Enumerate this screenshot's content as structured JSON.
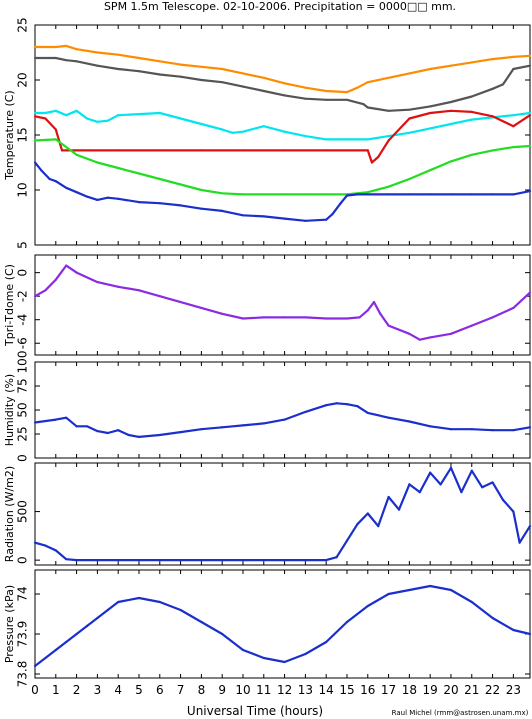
{
  "title": "SPM 1.5m Telescope. 02-10-2006. Precipitation = 0000□□ mm.",
  "xlabel": "Universal Time (hours)",
  "credit": "Raul Michel (rmm@astrosen.unam.mx)",
  "x_ticks": [
    0,
    1,
    2,
    3,
    4,
    5,
    6,
    7,
    8,
    9,
    10,
    11,
    12,
    13,
    14,
    15,
    16,
    17,
    18,
    19,
    20,
    21,
    22,
    23
  ],
  "chart_data": [
    {
      "type": "scatter",
      "ylabel": "Temperature (C)",
      "ylim": [
        5,
        25
      ],
      "yticks": [
        5,
        10,
        15,
        20,
        25
      ],
      "xlim": [
        0,
        23.8
      ],
      "series": [
        {
          "color": "#ff8c00",
          "x": [
            0,
            1,
            1.5,
            2,
            3,
            4,
            5,
            6,
            7,
            8,
            9,
            10,
            11,
            12,
            13,
            14,
            15,
            15.5,
            16,
            17,
            18,
            19,
            20,
            21,
            22,
            23,
            23.8
          ],
          "y": [
            23,
            23,
            23.1,
            22.8,
            22.5,
            22.3,
            22,
            21.7,
            21.4,
            21.2,
            21,
            20.6,
            20.2,
            19.7,
            19.3,
            19,
            18.9,
            19.3,
            19.8,
            20.2,
            20.6,
            21,
            21.3,
            21.6,
            21.9,
            22.1,
            22.2
          ]
        },
        {
          "color": "#555555",
          "x": [
            0,
            1,
            1.5,
            2,
            3,
            4,
            5,
            6,
            7,
            8,
            9,
            10,
            11,
            12,
            13,
            14,
            15,
            15.8,
            16,
            17,
            18,
            19,
            20,
            21,
            22,
            22.5,
            23,
            23.8
          ],
          "y": [
            22,
            22,
            21.8,
            21.7,
            21.3,
            21,
            20.8,
            20.5,
            20.3,
            20,
            19.8,
            19.4,
            19,
            18.6,
            18.3,
            18.2,
            18.2,
            17.8,
            17.5,
            17.2,
            17.3,
            17.6,
            18,
            18.5,
            19.2,
            19.6,
            21,
            21.3
          ]
        },
        {
          "color": "#00e5ee",
          "x": [
            0,
            0.5,
            1,
            1.5,
            2,
            2.5,
            3,
            3.5,
            4,
            5,
            6,
            7,
            8,
            9,
            9.5,
            10,
            11,
            12,
            13,
            14,
            15,
            16,
            17,
            18,
            19,
            20,
            21,
            22,
            23,
            23.8
          ],
          "y": [
            17,
            17,
            17.2,
            16.8,
            17.2,
            16.5,
            16.2,
            16.3,
            16.8,
            16.9,
            17,
            16.5,
            16,
            15.5,
            15.2,
            15.3,
            15.8,
            15.3,
            14.9,
            14.6,
            14.6,
            14.6,
            14.9,
            15.2,
            15.6,
            16,
            16.4,
            16.6,
            16.8,
            17
          ]
        },
        {
          "color": "#dd1111",
          "x": [
            0,
            0.5,
            1,
            1.3,
            2,
            4,
            6,
            8,
            10,
            12,
            14,
            16,
            16.2,
            16.5,
            17,
            18,
            19,
            20,
            21,
            22,
            23,
            23.8
          ],
          "y": [
            16.7,
            16.5,
            15.5,
            13.6,
            13.6,
            13.6,
            13.6,
            13.6,
            13.6,
            13.6,
            13.6,
            13.6,
            12.5,
            13,
            14.5,
            16.5,
            17,
            17.2,
            17.1,
            16.7,
            15.8,
            16.8
          ]
        },
        {
          "color": "#22dd22",
          "x": [
            0,
            1,
            2,
            3,
            4,
            5,
            6,
            7,
            8,
            9,
            10,
            11,
            12,
            13,
            14,
            15,
            16,
            17,
            18,
            19,
            20,
            21,
            22,
            23,
            23.8
          ],
          "y": [
            14.5,
            14.6,
            13.2,
            12.5,
            12,
            11.5,
            11,
            10.5,
            10,
            9.7,
            9.6,
            9.6,
            9.6,
            9.6,
            9.6,
            9.6,
            9.8,
            10.3,
            11,
            11.8,
            12.6,
            13.2,
            13.6,
            13.9,
            14
          ]
        },
        {
          "color": "#1a2fcc",
          "x": [
            0,
            0.3,
            0.7,
            1,
            1.5,
            2,
            2.5,
            3,
            3.5,
            4,
            5,
            6,
            7,
            8,
            9,
            10,
            11,
            12,
            13,
            14,
            14.3,
            14.7,
            15,
            15.5,
            16,
            17,
            18,
            19,
            20,
            21,
            22,
            23,
            23.8
          ],
          "y": [
            12.5,
            11.8,
            11,
            10.8,
            10.2,
            9.8,
            9.4,
            9.1,
            9.3,
            9.2,
            8.9,
            8.8,
            8.6,
            8.3,
            8.1,
            7.7,
            7.6,
            7.4,
            7.2,
            7.3,
            7.8,
            8.8,
            9.5,
            9.6,
            9.6,
            9.6,
            9.6,
            9.6,
            9.6,
            9.6,
            9.6,
            9.6,
            9.9
          ]
        }
      ]
    },
    {
      "type": "scatter",
      "ylabel": "Tpri-Tdome (C)",
      "ylim": [
        -7,
        1.5
      ],
      "yticks": [
        -6,
        -4,
        -2,
        0
      ],
      "xlim": [
        0,
        23.8
      ],
      "series": [
        {
          "color": "#8a2be2",
          "x": [
            0,
            0.5,
            1,
            1.5,
            2,
            3,
            4,
            5,
            6,
            7,
            8,
            9,
            10,
            11,
            12,
            13,
            14,
            15,
            15.6,
            16,
            16.3,
            16.6,
            17,
            18,
            18.5,
            19,
            20,
            21,
            22,
            23,
            23.8
          ],
          "y": [
            -2,
            -1.5,
            -0.6,
            0.6,
            0,
            -0.8,
            -1.2,
            -1.5,
            -2,
            -2.5,
            -3,
            -3.5,
            -3.9,
            -3.8,
            -3.8,
            -3.8,
            -3.9,
            -3.9,
            -3.8,
            -3.2,
            -2.5,
            -3.5,
            -4.5,
            -5.2,
            -5.7,
            -5.5,
            -5.2,
            -4.5,
            -3.8,
            -3,
            -1.7
          ]
        }
      ]
    },
    {
      "type": "scatter",
      "ylabel": "Humidity (%)",
      "ylim": [
        0,
        100
      ],
      "yticks": [
        0,
        25,
        50,
        75,
        100
      ],
      "xlim": [
        0,
        23.8
      ],
      "series": [
        {
          "color": "#1a2fcc",
          "x": [
            0,
            1,
            1.5,
            2,
            2.5,
            3,
            3.5,
            4,
            4.5,
            5,
            6,
            7,
            8,
            9,
            10,
            11,
            12,
            13,
            14,
            14.5,
            15,
            15.5,
            16,
            17,
            18,
            19,
            20,
            21,
            22,
            23,
            23.8
          ],
          "y": [
            37,
            40,
            42,
            33,
            33,
            28,
            26,
            29,
            24,
            22,
            24,
            27,
            30,
            32,
            34,
            36,
            40,
            48,
            55,
            57,
            56,
            54,
            47,
            42,
            38,
            33,
            30,
            30,
            29,
            29,
            32
          ]
        }
      ]
    },
    {
      "type": "scatter",
      "ylabel": "Radiation (W/m2)",
      "ylim": [
        -50,
        1000
      ],
      "yticks": [
        0,
        500
      ],
      "xlim": [
        0,
        23.8
      ],
      "series": [
        {
          "color": "#1a2fcc",
          "x": [
            0,
            0.5,
            1,
            1.5,
            2,
            4,
            6,
            8,
            10,
            12,
            13,
            14,
            14.5,
            15,
            15.5,
            16,
            16.5,
            17,
            17.5,
            18,
            18.5,
            19,
            19.5,
            20,
            20.5,
            21,
            21.5,
            22,
            22.5,
            23,
            23.3,
            23.8
          ],
          "y": [
            180,
            150,
            100,
            10,
            0,
            0,
            0,
            0,
            0,
            0,
            0,
            0,
            30,
            200,
            370,
            480,
            350,
            650,
            520,
            780,
            700,
            900,
            780,
            950,
            700,
            920,
            750,
            800,
            620,
            500,
            180,
            350
          ]
        }
      ]
    },
    {
      "type": "scatter",
      "ylabel": "Pressure (kPa)",
      "ylim": [
        73.79,
        74.06
      ],
      "yticks": [
        73.8,
        73.9,
        74
      ],
      "xlim": [
        0,
        23.8
      ],
      "series": [
        {
          "color": "#1a2fcc",
          "x": [
            0,
            0.5,
            1,
            1.5,
            2,
            2.5,
            3,
            3.5,
            4,
            5,
            6,
            7,
            8,
            9,
            10,
            11,
            12,
            13,
            14,
            15,
            16,
            17,
            18,
            19,
            20,
            21,
            22,
            23,
            23.8
          ],
          "y": [
            73.82,
            73.84,
            73.86,
            73.88,
            73.9,
            73.92,
            73.94,
            73.96,
            73.98,
            73.99,
            73.98,
            73.96,
            73.93,
            73.9,
            73.86,
            73.84,
            73.83,
            73.85,
            73.88,
            73.93,
            73.97,
            74,
            74.01,
            74.02,
            74.01,
            73.98,
            73.94,
            73.91,
            73.9
          ]
        }
      ]
    }
  ]
}
